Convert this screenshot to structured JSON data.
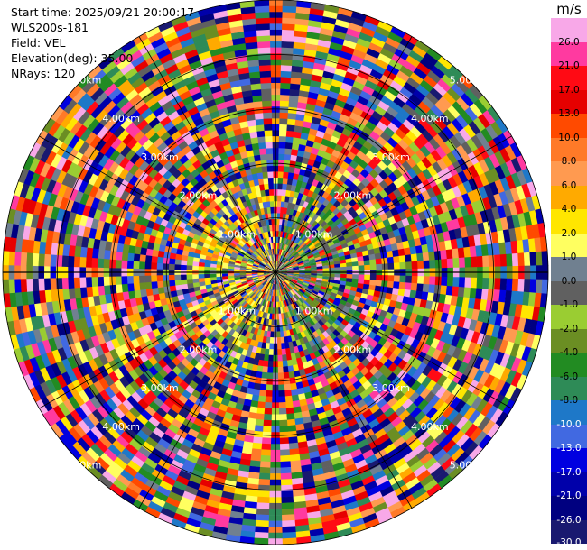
{
  "info": {
    "start_time": "Start time: 2025/09/21 20:00:17",
    "instrument": "WLS200s-181",
    "field": "Field: VEL",
    "elevation": "Elevation(deg): 35.00",
    "nrays": "NRays: 120"
  },
  "chart_data": {
    "type": "heatmap",
    "projection": "polar-ppi",
    "field": "VEL",
    "units": "m/s",
    "elevation_deg": 35.0,
    "n_rays": 120,
    "range_rings_km": [
      1.0,
      2.0,
      3.0,
      4.0,
      5.0
    ],
    "range_labels": [
      "1.00km",
      "2.00km",
      "3.00km",
      "4.00km",
      "5.00km"
    ],
    "max_range_km": 5.0,
    "colorbar": {
      "label": "m/s",
      "ticks": [
        "26.0",
        "21.0",
        "17.0",
        "13.0",
        "10.0",
        "8.0",
        "6.0",
        "4.0",
        "2.0",
        "1.0",
        "0.0",
        "-1.0",
        "-2.0",
        "-4.0",
        "-6.0",
        "-8.0",
        "-10.0",
        "-13.0",
        "-17.0",
        "-21.0",
        "-26.0",
        "-30.0"
      ],
      "colors": [
        "#f8a8e8",
        "#ff3aa0",
        "#ff0a14",
        "#e60000",
        "#ff4a00",
        "#ff7a28",
        "#ff9a50",
        "#ffaa00",
        "#ffe600",
        "#ffff60",
        "#708090",
        "#606060",
        "#9acd32",
        "#6b8e23",
        "#228b22",
        "#2e8b57",
        "#1e78c8",
        "#4169e1",
        "#0000e0",
        "#0000aa",
        "#000080",
        "#191970"
      ]
    }
  }
}
